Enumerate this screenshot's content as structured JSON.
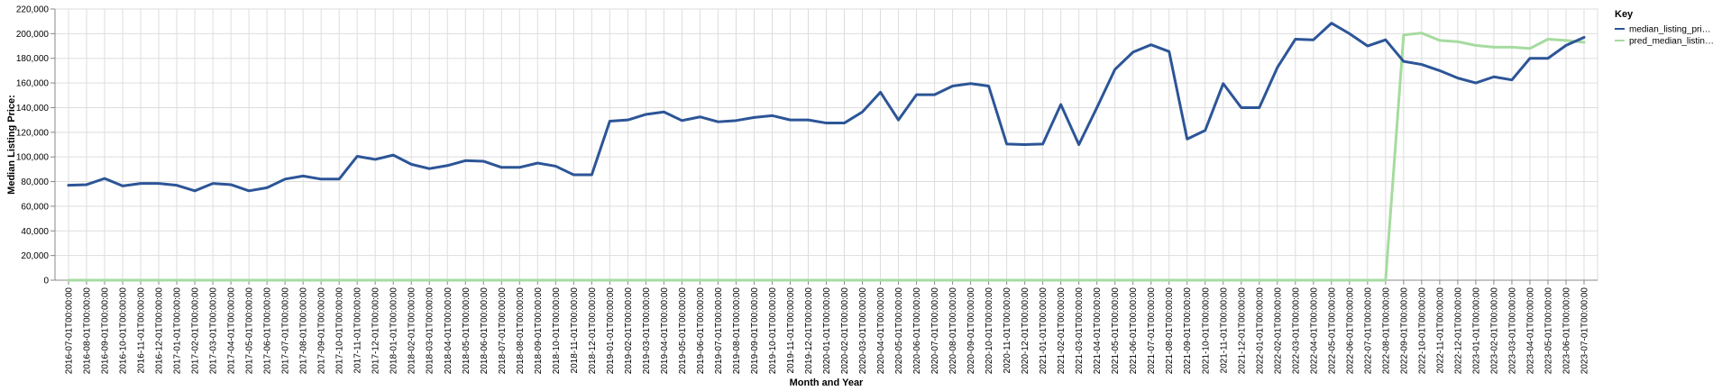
{
  "chart_data": {
    "type": "line",
    "xlabel": "Month and Year",
    "ylabel": "Median Listing Price:",
    "ylim": [
      0,
      220000
    ],
    "yticks": [
      "0",
      "20,000",
      "40,000",
      "60,000",
      "80,000",
      "100,000",
      "120,000",
      "140,000",
      "160,000",
      "180,000",
      "200,000",
      "220,000"
    ],
    "grid": true,
    "legend": {
      "title": "Key",
      "placement": "top-right",
      "entries": [
        "median_listing_pri…",
        "pred_median_listin…"
      ]
    },
    "x": [
      "2016-07-01T00:00:00",
      "2016-08-01T00:00:00",
      "2016-09-01T00:00:00",
      "2016-10-01T00:00:00",
      "2016-11-01T00:00:00",
      "2016-12-01T00:00:00",
      "2017-01-01T00:00:00",
      "2017-02-01T00:00:00",
      "2017-03-01T00:00:00",
      "2017-04-01T00:00:00",
      "2017-05-01T00:00:00",
      "2017-06-01T00:00:00",
      "2017-07-01T00:00:00",
      "2017-08-01T00:00:00",
      "2017-09-01T00:00:00",
      "2017-10-01T00:00:00",
      "2017-11-01T00:00:00",
      "2017-12-01T00:00:00",
      "2018-01-01T00:00:00",
      "2018-02-01T00:00:00",
      "2018-03-01T00:00:00",
      "2018-04-01T00:00:00",
      "2018-05-01T00:00:00",
      "2018-06-01T00:00:00",
      "2018-07-01T00:00:00",
      "2018-08-01T00:00:00",
      "2018-09-01T00:00:00",
      "2018-10-01T00:00:00",
      "2018-11-01T00:00:00",
      "2018-12-01T00:00:00",
      "2019-01-01T00:00:00",
      "2019-02-01T00:00:00",
      "2019-03-01T00:00:00",
      "2019-04-01T00:00:00",
      "2019-05-01T00:00:00",
      "2019-06-01T00:00:00",
      "2019-07-01T00:00:00",
      "2019-08-01T00:00:00",
      "2019-09-01T00:00:00",
      "2019-10-01T00:00:00",
      "2019-11-01T00:00:00",
      "2019-12-01T00:00:00",
      "2020-01-01T00:00:00",
      "2020-02-01T00:00:00",
      "2020-03-01T00:00:00",
      "2020-04-01T00:00:00",
      "2020-05-01T00:00:00",
      "2020-06-01T00:00:00",
      "2020-07-01T00:00:00",
      "2020-08-01T00:00:00",
      "2020-09-01T00:00:00",
      "2020-10-01T00:00:00",
      "2020-11-01T00:00:00",
      "2020-12-01T00:00:00",
      "2021-01-01T00:00:00",
      "2021-02-01T00:00:00",
      "2021-03-01T00:00:00",
      "2021-04-01T00:00:00",
      "2021-05-01T00:00:00",
      "2021-06-01T00:00:00",
      "2021-07-01T00:00:00",
      "2021-08-01T00:00:00",
      "2021-09-01T00:00:00",
      "2021-10-01T00:00:00",
      "2021-11-01T00:00:00",
      "2021-12-01T00:00:00",
      "2022-01-01T00:00:00",
      "2022-02-01T00:00:00",
      "2022-03-01T00:00:00",
      "2022-04-01T00:00:00",
      "2022-05-01T00:00:00",
      "2022-06-01T00:00:00",
      "2022-07-01T00:00:00",
      "2022-08-01T00:00:00",
      "2022-09-01T00:00:00",
      "2022-10-01T00:00:00",
      "2022-11-01T00:00:00",
      "2022-12-01T00:00:00",
      "2023-01-01T00:00:00",
      "2023-02-01T00:00:00",
      "2023-03-01T00:00:00",
      "2023-04-01T00:00:00",
      "2023-05-01T00:00:00",
      "2023-06-01T00:00:00",
      "2023-07-01T00:00:00"
    ],
    "series": [
      {
        "name": "median_listing_pri…",
        "color": "#2c5597",
        "values": [
          77000,
          77500,
          82500,
          76500,
          78500,
          78500,
          77000,
          72500,
          78500,
          77500,
          72500,
          75000,
          82000,
          84500,
          82000,
          82000,
          100500,
          98000,
          101500,
          94000,
          90500,
          93000,
          97000,
          96500,
          91500,
          91500,
          95000,
          92500,
          85500,
          85500,
          129000,
          130000,
          134500,
          136500,
          129500,
          132500,
          128500,
          129500,
          132000,
          133500,
          130000,
          130000,
          127500,
          127500,
          136500,
          152500,
          130000,
          150500,
          150500,
          157500,
          159500,
          157500,
          110500,
          110000,
          110500,
          142500,
          110000,
          140000,
          171000,
          185000,
          191000,
          185500,
          114500,
          121500,
          159500,
          140000,
          140000,
          172500,
          195500,
          195000,
          208500,
          200000,
          190000,
          195000,
          177500,
          175000,
          170000,
          164000,
          160000,
          165000,
          162500,
          180000,
          180000,
          190500,
          197000
        ]
      },
      {
        "name": "pred_median_listin…",
        "color": "#a6dba0",
        "values": [
          0,
          0,
          0,
          0,
          0,
          0,
          0,
          0,
          0,
          0,
          0,
          0,
          0,
          0,
          0,
          0,
          0,
          0,
          0,
          0,
          0,
          0,
          0,
          0,
          0,
          0,
          0,
          0,
          0,
          0,
          0,
          0,
          0,
          0,
          0,
          0,
          0,
          0,
          0,
          0,
          0,
          0,
          0,
          0,
          0,
          0,
          0,
          0,
          0,
          0,
          0,
          0,
          0,
          0,
          0,
          0,
          0,
          0,
          0,
          0,
          0,
          0,
          0,
          0,
          0,
          0,
          0,
          0,
          0,
          0,
          0,
          0,
          0,
          0,
          199000,
          200500,
          194500,
          193500,
          190500,
          189000,
          189000,
          188000,
          195500,
          194500,
          193000
        ]
      }
    ]
  }
}
